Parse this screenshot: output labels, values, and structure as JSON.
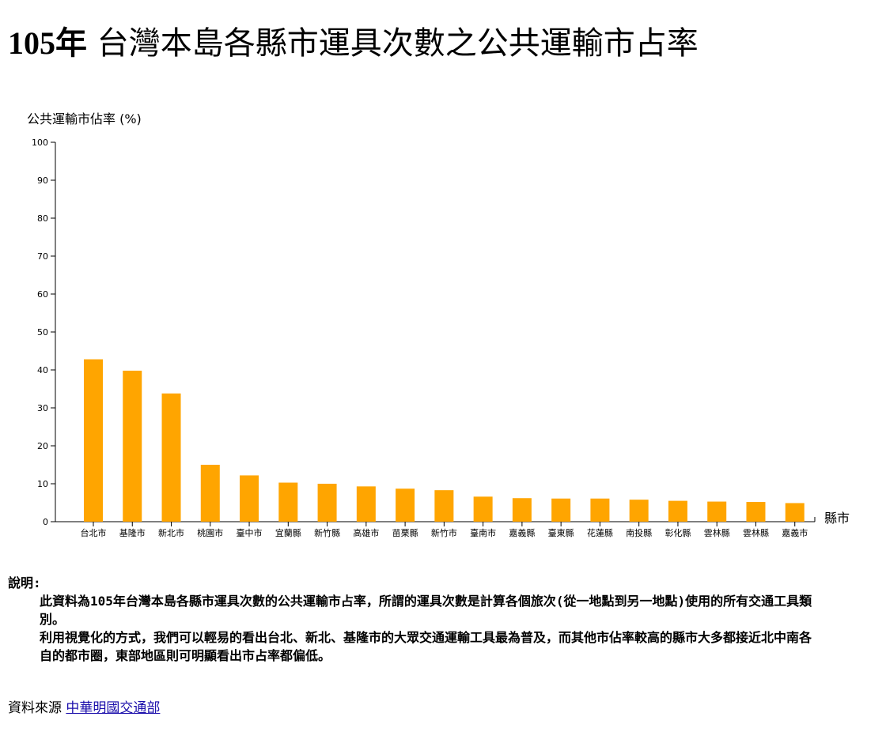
{
  "page": {
    "title_year": "105年",
    "title_rest": " 台灣本島各縣市運具次數之公共運輸市占率"
  },
  "chart_data": {
    "type": "bar",
    "ylabel": "公共運輸市佔率 (%)",
    "xlabel": "縣市",
    "ylim": [
      0,
      100
    ],
    "yticks": [
      0,
      10,
      20,
      30,
      40,
      50,
      60,
      70,
      80,
      90,
      100
    ],
    "categories": [
      "台北市",
      "基隆市",
      "新北市",
      "桃園市",
      "臺中市",
      "宜蘭縣",
      "新竹縣",
      "高雄市",
      "苗栗縣",
      "新竹市",
      "臺南市",
      "嘉義縣",
      "臺東縣",
      "花蓮縣",
      "南投縣",
      "彰化縣",
      "雲林縣",
      "雲林縣",
      "嘉義市"
    ],
    "values": [
      42.8,
      39.8,
      33.8,
      15.0,
      12.2,
      10.3,
      10.0,
      9.3,
      8.7,
      8.3,
      6.6,
      6.2,
      6.1,
      6.1,
      5.8,
      5.5,
      5.3,
      5.2,
      4.9
    ],
    "bar_color": "#FFA500",
    "grid": false
  },
  "description": {
    "heading": "說明:",
    "para1": "此資料為105年台灣本島各縣市運具次數的公共運輸市占率，所謂的運具次數是計算各個旅次(從一地點到另一地點)使用的所有交通工具類別。",
    "para2": "利用視覺化的方式，我們可以輕易的看出台北、新北、基隆市的大眾交通運輸工具最為普及，而其他市佔率較高的縣市大多都接近北中南各自的都市圈，東部地區則可明顯看出市占率都偏低。"
  },
  "source": {
    "label": "資料來源 ",
    "link_text": "中華明國交通部"
  }
}
